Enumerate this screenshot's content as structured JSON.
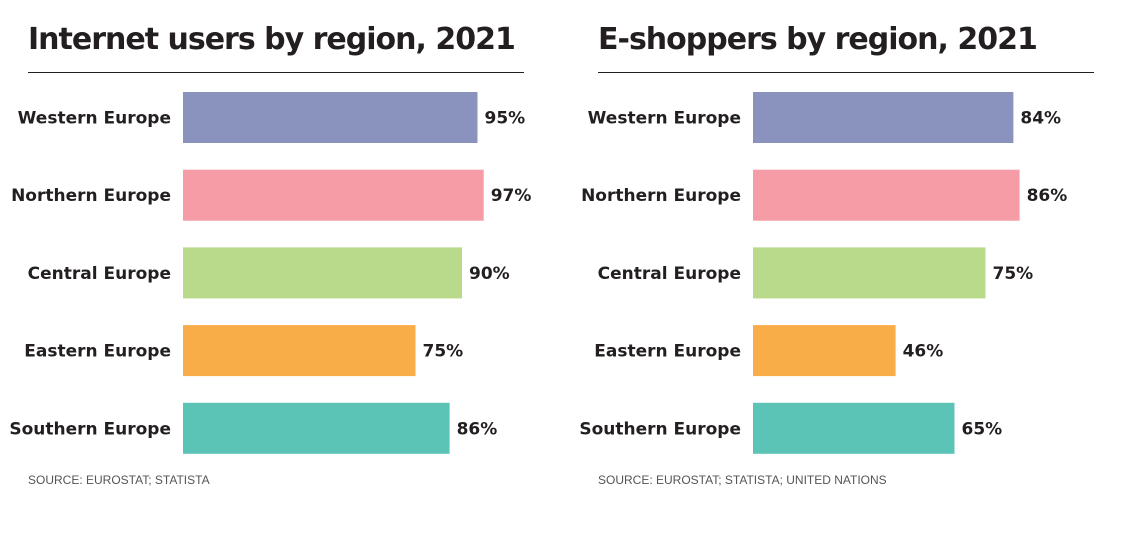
{
  "colors": {
    "Western Europe": "#8a93bd",
    "Northern Europe": "#f59ca6",
    "Central Europe": "#b8da8a",
    "Eastern Europe": "#f9ad48",
    "Southern Europe": "#5cc4b7"
  },
  "chart_data": [
    {
      "type": "bar",
      "orientation": "horizontal",
      "title": "Internet users by region, 2021",
      "categories": [
        "Western Europe",
        "Northern Europe",
        "Central Europe",
        "Eastern Europe",
        "Southern Europe"
      ],
      "values": [
        95,
        97,
        90,
        75,
        86
      ],
      "value_labels": [
        "95%",
        "97%",
        "90%",
        "75%",
        "86%"
      ],
      "xlim": [
        0,
        100
      ],
      "grid": false,
      "source": "SOURCE: EUROSTAT; STATISTA"
    },
    {
      "type": "bar",
      "orientation": "horizontal",
      "title": "E-shoppers by region, 2021",
      "categories": [
        "Western Europe",
        "Northern Europe",
        "Central Europe",
        "Eastern Europe",
        "Southern Europe"
      ],
      "values": [
        84,
        86,
        75,
        46,
        65
      ],
      "value_labels": [
        "84%",
        "86%",
        "75%",
        "46%",
        "65%"
      ],
      "xlim": [
        0,
        100
      ],
      "grid": false,
      "source": "SOURCE: EUROSTAT; STATISTA; UNITED NATIONS"
    }
  ]
}
